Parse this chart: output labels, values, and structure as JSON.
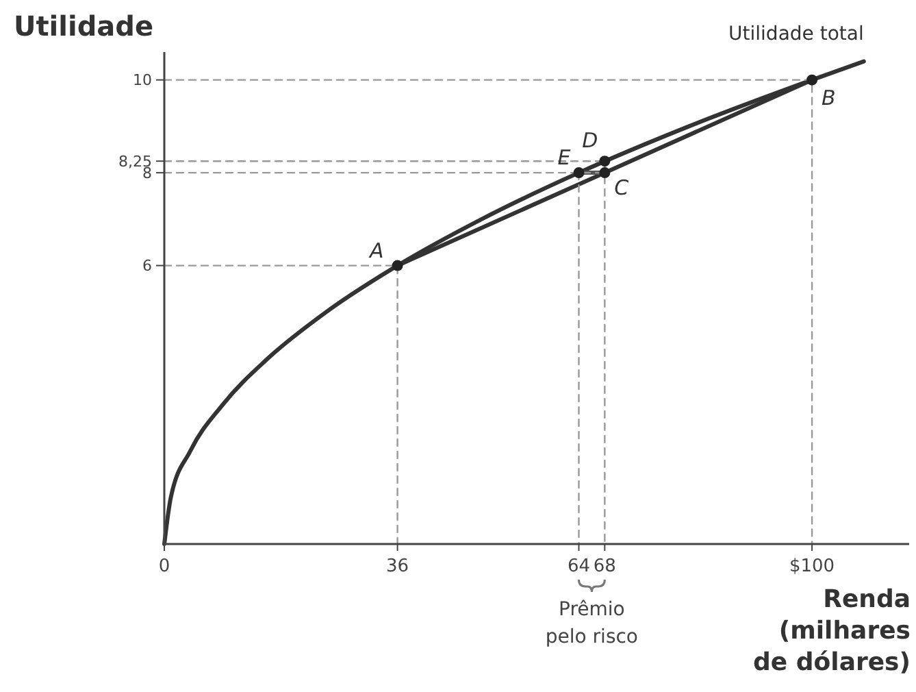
{
  "chart_data": {
    "type": "line",
    "xlabel": "Renda\n(milhares\nde dólares)",
    "ylabel": "Utilidade",
    "xlim": [
      0,
      115
    ],
    "ylim": [
      0,
      10.6
    ],
    "xticks": [
      0,
      36,
      64,
      68,
      {
        "value": 100,
        "label": "$100"
      }
    ],
    "yticks": [
      6,
      8,
      {
        "value": 8.25,
        "label": "8,25"
      },
      10
    ],
    "series": [
      {
        "name": "Utilidade total",
        "color": "#333333",
        "marker": "none",
        "line_style": "solid",
        "x": [
          0,
          1,
          4,
          9,
          16,
          25,
          36,
          49,
          64,
          81,
          100,
          108
        ],
        "values": [
          0,
          1,
          2,
          3,
          4,
          5,
          6,
          7,
          8,
          9,
          10,
          10.4
        ]
      },
      {
        "color": "#333333",
        "marker": "none",
        "line_style": "solid",
        "x": [
          36,
          100
        ],
        "values": [
          6,
          10
        ]
      },
      {
        "color": "#555555",
        "marker": "none",
        "line_style": "solid",
        "x": [
          64,
          68
        ],
        "values": [
          8,
          8
        ]
      },
      {
        "color": "#999999",
        "marker": "none",
        "line_style": "dashed",
        "x": [
          0,
          100,
          100
        ],
        "values": [
          10,
          10,
          0
        ]
      },
      {
        "color": "#999999",
        "marker": "none",
        "line_style": "dashed",
        "x": [
          0,
          68,
          68
        ],
        "values": [
          8.25,
          8.25,
          0
        ]
      },
      {
        "color": "#999999",
        "marker": "none",
        "line_style": "dashed",
        "x": [
          0,
          68
        ],
        "values": [
          8,
          8
        ]
      },
      {
        "color": "#999999",
        "marker": "none",
        "line_style": "dashed",
        "x": [
          64,
          64
        ],
        "values": [
          8,
          0
        ]
      },
      {
        "color": "#999999",
        "marker": "none",
        "line_style": "dashed",
        "x": [
          0,
          36,
          36
        ],
        "values": [
          6,
          6,
          0
        ]
      },
      {
        "type": "scatter",
        "color": "#222222",
        "marker": "circle",
        "x": [
          36,
          64,
          68,
          68,
          100
        ],
        "values": [
          6,
          8,
          8,
          8.25,
          10
        ]
      }
    ],
    "annotations": [
      {
        "text": "A",
        "x": 36,
        "y": 6
      },
      {
        "text": "E",
        "x": 64,
        "y": 8
      },
      {
        "text": "C",
        "x": 68,
        "y": 8
      },
      {
        "text": "D",
        "x": 68,
        "y": 8.25
      },
      {
        "text": "B",
        "x": 100,
        "y": 10
      },
      "Prêmio pelo risco"
    ]
  }
}
